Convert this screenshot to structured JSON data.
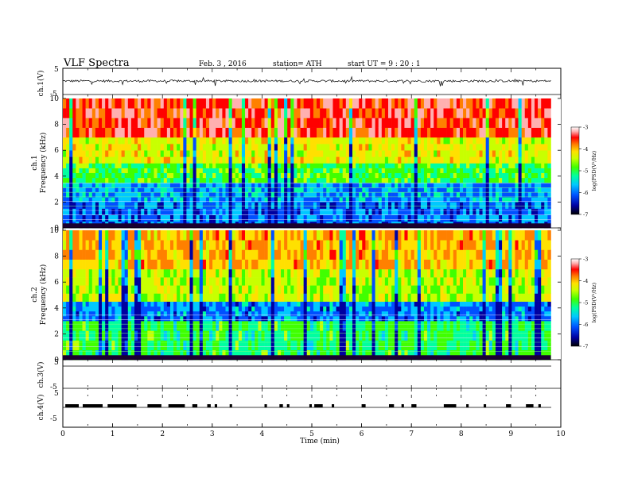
{
  "header": {
    "title": "VLF  Spectra",
    "date": "Feb. 3  , 2016",
    "station": "station= ATH",
    "start": "start  UT  =    9  : 20 : 1"
  },
  "colors": {
    "spectrogram_scale": [
      "#0000a0",
      "#0050ff",
      "#00c8ff",
      "#00ffa0",
      "#40ff00",
      "#c8ff00",
      "#ffe000",
      "#ff8000",
      "#ff0000",
      "#ffb0b0",
      "#ffffff"
    ],
    "trace": "#000000"
  },
  "chart_data": [
    {
      "type": "line",
      "panel": "ch1-waveform",
      "ylabel": "ch.1(V)",
      "yticks": [
        "5",
        "-5"
      ],
      "ylim": [
        -5,
        5
      ],
      "xlim": [
        0,
        10
      ],
      "baseline_level": 0,
      "description_range": [
        -1.2,
        1.0
      ]
    },
    {
      "type": "heatmap",
      "panel": "ch1-spectrogram",
      "ylabel": "ch.1  Frequency  (kHz)",
      "ylabel_lines": [
        "ch.1",
        "Frequency  (kHz)"
      ],
      "yticks": [
        "0",
        "2",
        "4",
        "6",
        "8",
        "10"
      ],
      "ylim": [
        0,
        10
      ],
      "xlim": [
        0,
        9.8
      ],
      "colorbar": {
        "label": "log(PSD(V²/Hz)",
        "ticks": [
          "-3",
          "-4",
          "-5",
          "-6",
          "-7"
        ],
        "range": [
          -7,
          -3
        ]
      },
      "band_levels_log_psd": [
        {
          "freq_khz": [
            0,
            2
          ],
          "value": -6.5
        },
        {
          "freq_khz": [
            2,
            3.5
          ],
          "value": -6.3
        },
        {
          "freq_khz": [
            3.5,
            5
          ],
          "value": -5.5
        },
        {
          "freq_khz": [
            5,
            7
          ],
          "value": -4.8
        },
        {
          "freq_khz": [
            7,
            10
          ],
          "value": -3.8
        }
      ]
    },
    {
      "type": "heatmap",
      "panel": "ch2-spectrogram",
      "ylabel": "ch.2  Frequency  (kHz)",
      "ylabel_lines": [
        "ch.2",
        "Frequency  (kHz)"
      ],
      "yticks": [
        "0",
        "2",
        "4",
        "6",
        "8",
        "10"
      ],
      "ylim": [
        0,
        10
      ],
      "xlim": [
        0,
        9.8
      ],
      "colorbar": {
        "label": "log(PSD(V²/Hz)",
        "ticks": [
          "-3",
          "-4",
          "-5",
          "-6",
          "-7"
        ],
        "range": [
          -7,
          -3
        ]
      },
      "band_levels_log_psd": [
        {
          "freq_khz": [
            0,
            3
          ],
          "value": -5.6
        },
        {
          "freq_khz": [
            3,
            4.5
          ],
          "value": -6.4
        },
        {
          "freq_khz": [
            4.5,
            7
          ],
          "value": -5.0
        },
        {
          "freq_khz": [
            7,
            10
          ],
          "value": -4.4
        }
      ]
    },
    {
      "type": "line",
      "panel": "ch3-waveform",
      "ylabel": "ch.3(V)",
      "yticks": [
        "5",
        "-5"
      ],
      "ylim": [
        -5,
        5
      ],
      "xlim": [
        0,
        10
      ],
      "baseline_level": 0
    },
    {
      "type": "line",
      "panel": "ch4-waveform",
      "ylabel": "ch.4(V)",
      "yticks": [
        "5",
        "-5"
      ],
      "ylim": [
        -5,
        5
      ],
      "xlim": [
        0,
        10
      ],
      "baseline_level": 0,
      "pulse_level": 0.4,
      "pulse_intervals_min": [
        [
          0.05,
          0.32
        ],
        [
          0.4,
          0.8
        ],
        [
          0.9,
          1.48
        ],
        [
          1.7,
          1.98
        ],
        [
          2.12,
          2.45
        ],
        [
          2.6,
          2.7
        ],
        [
          2.9,
          2.97
        ],
        [
          3.05,
          3.1
        ],
        [
          3.35,
          3.4
        ],
        [
          4.05,
          4.1
        ],
        [
          4.35,
          4.42
        ],
        [
          4.5,
          4.55
        ],
        [
          4.95,
          5.0
        ],
        [
          5.05,
          5.22
        ],
        [
          5.4,
          5.45
        ],
        [
          6.0,
          6.08
        ],
        [
          6.55,
          6.65
        ],
        [
          6.8,
          6.85
        ],
        [
          7.0,
          7.1
        ],
        [
          7.65,
          7.9
        ],
        [
          8.1,
          8.15
        ],
        [
          8.45,
          8.5
        ],
        [
          8.9,
          9.0
        ],
        [
          9.3,
          9.45
        ],
        [
          9.55,
          9.6
        ]
      ]
    }
  ],
  "x_axis": {
    "label": "Time  (min)",
    "ticks": [
      "0",
      "1",
      "2",
      "3",
      "4",
      "5",
      "6",
      "7",
      "8",
      "9",
      "10"
    ],
    "range": [
      0,
      10
    ]
  }
}
